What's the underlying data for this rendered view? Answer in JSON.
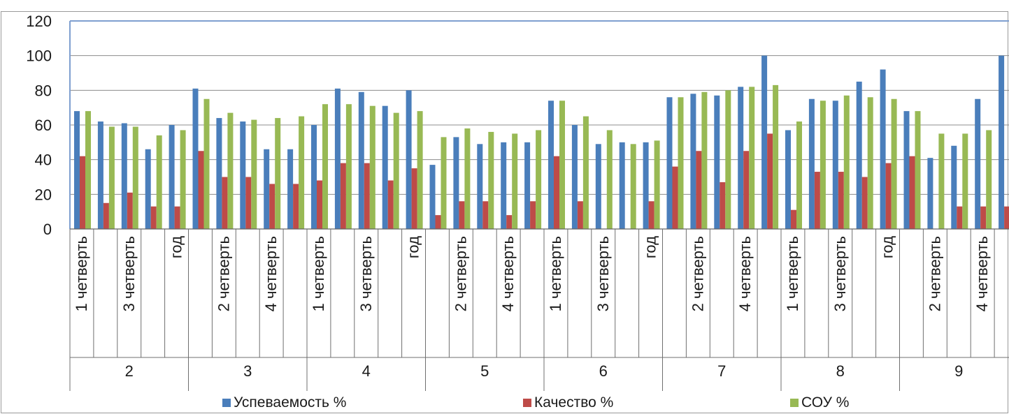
{
  "chart_data": {
    "type": "bar",
    "groups": [
      "2",
      "3",
      "4",
      "5",
      "6",
      "7",
      "8",
      "9"
    ],
    "quarter_labels": [
      "1 четверть",
      "2 четверть",
      "3 четверть",
      "4 четверть",
      "год"
    ],
    "visible_quarter_labels": [
      [
        "1 четверть",
        "",
        "3 четверть",
        "",
        "год"
      ],
      [
        "",
        "2 четверть",
        "",
        "4 четверть",
        ""
      ],
      [
        "1 четверть",
        "",
        "3 четверть",
        "",
        "год"
      ],
      [
        "",
        "2 четверть",
        "",
        "4 четверть",
        ""
      ],
      [
        "1 четверть",
        "",
        "3 четверть",
        "",
        "год"
      ],
      [
        "",
        "2 четверть",
        "",
        "4 четверть",
        ""
      ],
      [
        "1 четверть",
        "",
        "3 четверть",
        "",
        "год"
      ],
      [
        "",
        "2 четверть",
        "",
        "4 четверть",
        ""
      ]
    ],
    "series": [
      {
        "name": "Успеваемость %",
        "color": "#4a7ebb",
        "values": [
          68,
          62,
          61,
          46,
          60,
          81,
          64,
          62,
          46,
          46,
          60,
          81,
          79,
          71,
          80,
          37,
          53,
          49,
          50,
          50,
          74,
          60,
          49,
          50,
          50,
          76,
          78,
          77,
          82,
          100,
          57,
          75,
          74,
          85,
          92,
          68,
          41,
          48,
          75,
          100
        ]
      },
      {
        "name": "Качество %",
        "color": "#be4b48",
        "values": [
          42,
          15,
          21,
          13,
          13,
          45,
          30,
          30,
          26,
          26,
          28,
          38,
          38,
          28,
          35,
          8,
          16,
          16,
          8,
          16,
          42,
          16,
          0,
          0,
          16,
          36,
          45,
          27,
          45,
          55,
          11,
          33,
          33,
          30,
          38,
          42,
          0,
          13,
          13,
          13
        ]
      },
      {
        "name": "СОУ %",
        "color": "#98b954",
        "values": [
          68,
          59,
          59,
          54,
          57,
          75,
          67,
          63,
          64,
          65,
          72,
          72,
          71,
          67,
          68,
          53,
          58,
          56,
          55,
          57,
          74,
          65,
          57,
          49,
          51,
          76,
          79,
          80,
          82,
          83,
          62,
          74,
          77,
          76,
          75,
          68,
          55,
          55,
          57,
          58
        ]
      }
    ],
    "yticks": [
      0,
      20,
      40,
      60,
      80,
      100,
      120
    ],
    "ylim": [
      0,
      120
    ],
    "grid": true,
    "legend_position": "bottom"
  }
}
